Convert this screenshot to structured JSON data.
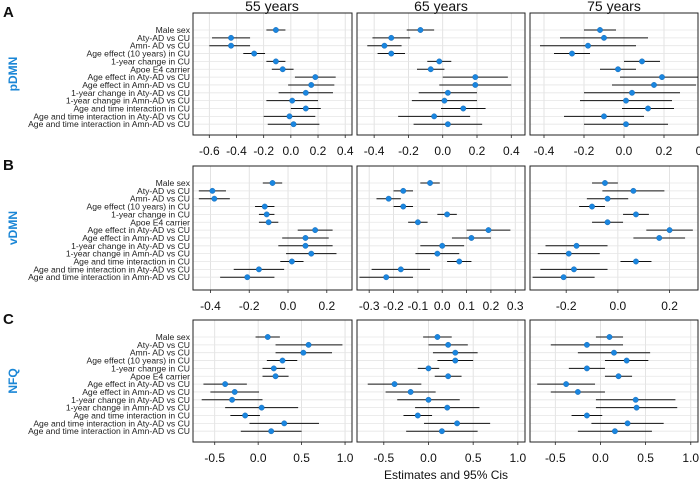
{
  "chart_data": {
    "type": "forest",
    "title": "",
    "xlabel": "Estimates and 95% Cis",
    "columns": [
      "55 years",
      "65 years",
      "75 years"
    ],
    "panels": [
      "A",
      "B",
      "C"
    ],
    "rows": [
      "pDMN",
      "vDMN",
      "NFQ"
    ],
    "labels": [
      "Male sex",
      "Aty-AD vs CU",
      "Amn- AD vs CU",
      "Age effect (10 years) in CU",
      "1-year change in CU",
      "Apoe E4 carrier",
      "Age effect in Aty-AD vs CU",
      "Age effect in Amn-AD vs CU",
      "1-year change in Aty-AD vs CU",
      "1-year change in Amn-AD vs CU",
      "Age and time interaction in CU",
      "Age and time interaction in Aty-AD vs CU",
      "Age and time interaction in Amn-AD vs CU"
    ],
    "tick_labels": [
      [
        [
          "-0.6",
          "-0.4",
          "-0.2",
          "0.0",
          "0.2",
          "0.4"
        ],
        [
          "-0.4",
          "-0.2",
          "0.0",
          "0.2",
          "0.4"
        ],
        [
          "-0.4",
          "-0.2",
          "0.0",
          "0.2",
          "0.4"
        ]
      ],
      [
        [
          "-0.4",
          "-0.2",
          "0.0",
          "0.2"
        ],
        [
          "-0.3",
          "-0.2",
          "-0.1",
          "0.0",
          "0.1",
          "0.2",
          "0.3"
        ],
        [
          "-0.2",
          "0.0",
          "0.2"
        ]
      ],
      [
        [
          "-0.5",
          "0.0",
          "0.5",
          "1.0"
        ],
        [
          "-0.5",
          "0.0",
          "0.5",
          "1.0"
        ],
        [
          "-0.5",
          "0.0",
          "0.5",
          "1.0"
        ]
      ]
    ],
    "facets": [
      [
        {
          "xlim": [
            -0.72,
            0.45
          ],
          "ticks": [
            -0.6,
            -0.4,
            -0.2,
            0.0,
            0.2,
            0.4
          ],
          "est": [
            -0.11,
            -0.44,
            -0.44,
            -0.27,
            -0.11,
            -0.06,
            0.18,
            0.15,
            0.11,
            0.01,
            0.11,
            -0.01,
            0.02
          ],
          "lo": [
            -0.18,
            -0.58,
            -0.6,
            -0.35,
            -0.18,
            -0.14,
            0.03,
            -0.02,
            -0.09,
            -0.18,
            0.0,
            -0.2,
            -0.17
          ],
          "hi": [
            -0.04,
            -0.3,
            -0.3,
            -0.19,
            -0.04,
            0.02,
            0.33,
            0.32,
            0.31,
            0.2,
            0.22,
            0.18,
            0.21
          ]
        },
        {
          "xlim": [
            -0.5,
            0.48
          ],
          "ticks": [
            -0.4,
            -0.2,
            0.0,
            0.2,
            0.4
          ],
          "est": [
            -0.13,
            -0.3,
            -0.34,
            -0.3,
            -0.02,
            -0.07,
            0.19,
            0.19,
            0.03,
            0.01,
            0.12,
            -0.05,
            0.03
          ],
          "lo": [
            -0.21,
            -0.41,
            -0.44,
            -0.38,
            -0.09,
            -0.15,
            0.0,
            -0.02,
            -0.14,
            -0.18,
            -0.01,
            -0.26,
            -0.17
          ],
          "hi": [
            -0.05,
            -0.19,
            -0.24,
            -0.22,
            0.05,
            0.01,
            0.38,
            0.4,
            0.2,
            0.2,
            0.25,
            0.16,
            0.23
          ]
        },
        {
          "xlim": [
            -0.47,
            0.37
          ],
          "ticks": [
            -0.4,
            -0.2,
            0.0,
            0.2,
            0.4
          ],
          "est": [
            -0.12,
            -0.1,
            -0.18,
            -0.26,
            0.09,
            -0.03,
            0.19,
            0.15,
            0.04,
            0.01,
            0.12,
            -0.1,
            0.01
          ],
          "lo": [
            -0.2,
            -0.32,
            -0.42,
            -0.35,
            0.0,
            -0.12,
            -0.02,
            -0.06,
            -0.2,
            -0.22,
            -0.01,
            -0.3,
            -0.2
          ],
          "hi": [
            -0.04,
            0.12,
            0.06,
            -0.17,
            0.18,
            0.06,
            0.4,
            0.36,
            0.28,
            0.24,
            0.25,
            0.1,
            0.22
          ]
        }
      ],
      [
        {
          "xlim": [
            -0.49,
            0.33
          ],
          "ticks": [
            -0.4,
            -0.2,
            0.0,
            0.2
          ],
          "est": [
            -0.08,
            -0.39,
            -0.38,
            -0.12,
            -0.11,
            -0.1,
            0.14,
            0.09,
            0.09,
            0.12,
            0.02,
            -0.15,
            -0.21
          ],
          "lo": [
            -0.13,
            -0.46,
            -0.46,
            -0.17,
            -0.15,
            -0.15,
            0.05,
            -0.03,
            -0.05,
            -0.01,
            -0.04,
            -0.28,
            -0.35
          ],
          "hi": [
            -0.03,
            -0.32,
            -0.3,
            -0.07,
            -0.07,
            -0.05,
            0.23,
            0.21,
            0.23,
            0.25,
            0.08,
            -0.02,
            -0.07
          ]
        },
        {
          "xlim": [
            -0.35,
            0.34
          ],
          "ticks": [
            -0.3,
            -0.2,
            -0.1,
            0.0,
            0.1,
            0.2,
            0.3
          ],
          "est": [
            -0.05,
            -0.16,
            -0.22,
            -0.16,
            0.02,
            -0.1,
            0.19,
            0.12,
            0.0,
            -0.02,
            0.07,
            -0.17,
            -0.23
          ],
          "lo": [
            -0.09,
            -0.2,
            -0.27,
            -0.2,
            -0.02,
            -0.14,
            0.1,
            0.04,
            -0.09,
            -0.11,
            0.02,
            -0.29,
            -0.34
          ],
          "hi": [
            -0.01,
            -0.12,
            -0.17,
            -0.12,
            0.06,
            -0.06,
            0.28,
            0.2,
            0.09,
            0.07,
            0.12,
            -0.05,
            -0.12
          ]
        },
        {
          "xlim": [
            -0.34,
            0.31
          ],
          "ticks": [
            -0.2,
            0.0,
            0.2
          ],
          "est": [
            -0.05,
            0.06,
            -0.04,
            -0.1,
            0.07,
            -0.04,
            0.2,
            0.16,
            -0.16,
            -0.19,
            0.07,
            -0.17,
            -0.21
          ],
          "lo": [
            -0.1,
            -0.06,
            -0.12,
            -0.15,
            0.02,
            -0.1,
            0.11,
            0.06,
            -0.28,
            -0.31,
            0.01,
            -0.3,
            -0.33
          ],
          "hi": [
            0.0,
            0.18,
            0.04,
            -0.05,
            0.12,
            0.02,
            0.29,
            0.26,
            -0.04,
            -0.07,
            0.13,
            -0.04,
            -0.09
          ]
        }
      ],
      [
        {
          "xlim": [
            -0.75,
            1.08
          ],
          "ticks": [
            -0.5,
            0.0,
            0.5,
            1.0
          ],
          "est": [
            0.11,
            0.58,
            0.52,
            0.28,
            0.18,
            0.2,
            -0.38,
            -0.27,
            -0.3,
            0.04,
            -0.15,
            0.3,
            0.15
          ],
          "lo": [
            -0.03,
            0.2,
            0.2,
            0.1,
            0.05,
            0.05,
            -0.63,
            -0.55,
            -0.65,
            -0.38,
            -0.32,
            -0.1,
            -0.2
          ],
          "hi": [
            0.25,
            0.97,
            0.85,
            0.45,
            0.31,
            0.35,
            -0.13,
            0.01,
            0.05,
            0.46,
            0.02,
            0.7,
            0.5
          ]
        },
        {
          "xlim": [
            -0.8,
            1.08
          ],
          "ticks": [
            -0.5,
            0.0,
            0.5,
            1.0
          ],
          "est": [
            0.1,
            0.22,
            0.3,
            0.3,
            0.0,
            0.22,
            -0.38,
            -0.2,
            0.0,
            0.21,
            -0.12,
            0.32,
            0.15
          ],
          "lo": [
            -0.06,
            0.0,
            0.05,
            0.1,
            -0.12,
            0.07,
            -0.68,
            -0.48,
            -0.35,
            -0.15,
            -0.28,
            -0.05,
            -0.25
          ],
          "hi": [
            0.26,
            0.44,
            0.55,
            0.5,
            0.12,
            0.37,
            -0.08,
            0.08,
            0.35,
            0.57,
            0.04,
            0.69,
            0.55
          ]
        },
        {
          "xlim": [
            -0.78,
            1.08
          ],
          "ticks": [
            -0.5,
            0.0,
            0.5,
            1.0
          ],
          "est": [
            0.1,
            -0.15,
            0.15,
            0.29,
            -0.15,
            0.2,
            -0.38,
            -0.25,
            0.39,
            0.4,
            -0.15,
            0.3,
            0.16
          ],
          "lo": [
            -0.05,
            -0.55,
            -0.25,
            0.05,
            -0.35,
            0.05,
            -0.7,
            -0.55,
            -0.05,
            -0.05,
            -0.32,
            -0.1,
            -0.25
          ],
          "hi": [
            0.25,
            0.25,
            0.55,
            0.53,
            0.05,
            0.35,
            -0.06,
            0.05,
            0.83,
            0.85,
            0.02,
            0.7,
            0.57
          ]
        }
      ]
    ]
  }
}
